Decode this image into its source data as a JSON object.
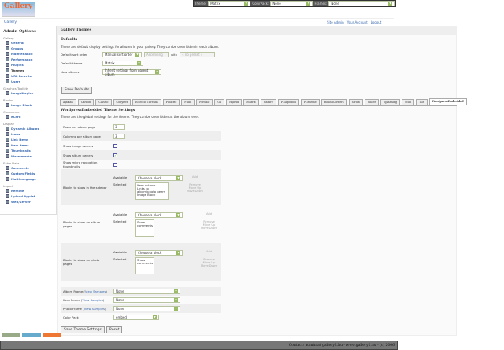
{
  "topbar": {
    "theme_label": "Theme:",
    "theme_value": "Matrix",
    "colorpack_label": "ColorPack:",
    "colorpack_value": "None",
    "frames_label": "Frames:",
    "frames_value": "None"
  },
  "logo": {
    "text": "Gallery"
  },
  "breadcrumb": "Gallery",
  "userlinks": [
    "Site Admin",
    "Your Account",
    "Logout"
  ],
  "sidebar": {
    "title": "Admin Options",
    "groups": [
      {
        "label": "Gallery",
        "items": [
          "General",
          "Groups",
          "Maintenance",
          "Performance",
          "Plugins",
          "Themes",
          "URL Rewrite",
          "Users"
        ]
      },
      {
        "label": "Graphics Toolkits",
        "items": [
          "ImageMagick"
        ]
      },
      {
        "label": "Blocks",
        "items": [
          "Image Block"
        ]
      },
      {
        "label": "Commerce",
        "items": [
          "eCard"
        ]
      },
      {
        "label": "Display",
        "items": [
          "Dynamic Albums",
          "Icons",
          "Link Items",
          "New Items",
          "Thumbnails",
          "Watermarks"
        ]
      },
      {
        "label": "Extra Data",
        "items": [
          "Comments",
          "Custom Fields",
          "MultiLanguage"
        ]
      },
      {
        "label": "Import",
        "items": [
          "Remote",
          "Upload Applet",
          "Web/Server"
        ]
      }
    ]
  },
  "main": {
    "title": "Gallery Themes",
    "defaults_title": "Defaults",
    "defaults_desc": "These are default display settings for albums in your gallery. They can be overridden in each album.",
    "sort_label": "Default sort order",
    "sort_value": "Manual sort order",
    "sort_dir": "Ascending",
    "with_label": "with",
    "with_value": "« no preset »",
    "theme_label": "Default theme",
    "theme_value": "Matrix",
    "new_label": "New albums",
    "new_value": "Inherit settings from parent album",
    "save_defaults": "Save Defaults",
    "tabs": [
      "Ajaxian",
      "Carbon",
      "Classic",
      "Copyleft",
      "Eclectic Threads",
      "Floatrix",
      "Fluid",
      "ForSale",
      "G1",
      "Hybrid",
      "Matrix",
      "Nature",
      "PGlightbox",
      "PGtheme",
      "RoundCorners",
      "Siriux",
      "Slider",
      "Splashing",
      "Stun",
      "Tile",
      "WordpressEmbedded"
    ],
    "active_tab": "WordpressEmbedded",
    "settings_title": "WordpressEmbedded Theme Settings",
    "settings_desc": "These are the global settings for the theme. They can be overridden at the album level.",
    "rows_label": "Rows per album page",
    "rows_value": "3",
    "cols_label": "Columns per album page",
    "cols_value": "3",
    "img_owners_label": "Show image owners",
    "img_owners": false,
    "album_owners_label": "Show album owners",
    "album_owners": true,
    "micro_label": "Show micro navigation thumbnails",
    "micro": false,
    "available": "Available",
    "selected": "Selected",
    "choose": "Choose a block",
    "add": "Add",
    "remove": "Remove",
    "move_up": "Move Up",
    "move_down": "Move Down",
    "sidebar_blocks_label": "Blocks to show in the sidebar",
    "sidebar_blocks": [
      "Item actions",
      "Links to album/photo peers",
      "Image Block"
    ],
    "album_blocks_label": "Blocks to show on album pages",
    "album_blocks": [
      "Show comments"
    ],
    "photo_blocks_label": "Blocks to show on photo pages",
    "photo_blocks": [
      "Show comments"
    ],
    "album_frame_label": "Album Frame",
    "item_frame_label": "Item Frame",
    "photo_frame_label": "Photo Frame",
    "view_samples": "View Samples",
    "album_frame": "None",
    "item_frame": "None",
    "photo_frame": "None",
    "colorpack_label": "Color Pack",
    "colorpack": "embed",
    "save_theme": "Save Theme Settings",
    "reset": "Reset"
  },
  "footer": "Contact: admin at gallery2.hu - www.gallery2.hu - (c) 2006"
}
